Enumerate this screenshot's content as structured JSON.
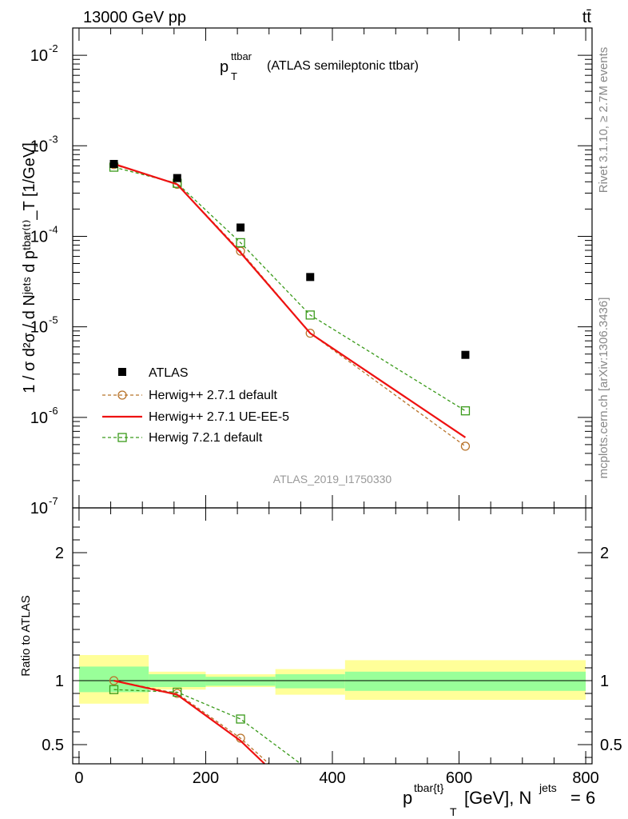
{
  "header": {
    "left": "13000 GeV pp",
    "right": "tt̄"
  },
  "side_labels": {
    "rivet": "Rivet 3.1.10, ≥ 2.7M events",
    "mcplots": "mcplots.cern.ch [arXiv:1306.3436]"
  },
  "plot_title": {
    "main": "p",
    "sup": "ttbar",
    "sub": "T",
    "rest": "(ATLAS semileptonic ttbar)"
  },
  "analysis_id": "ATLAS_2019_I1750330",
  "colors": {
    "atlas": "#000000",
    "herwig271_default": "#b8732a",
    "herwig271_ueee5": "#ee1111",
    "herwig721_default": "#3a9a1a",
    "band_inner": "#99ff99",
    "band_outer": "#ffff99"
  },
  "chart_data": [
    {
      "type": "scatter",
      "name": "main",
      "ylabel": "1 / σ d²σ / d Nʲᵉᵗˢ d pᵗᵇᵃʳ⁽ᵗ⁾_T [1/GeV]",
      "yscale": "log",
      "ylim": [
        1e-07,
        0.02
      ],
      "xlim": [
        -10,
        810
      ],
      "y_tick_labels": [
        "10",
        "10",
        "10",
        "10",
        "10",
        "10"
      ],
      "y_tick_exponents": [
        "-7",
        "-6",
        "-5",
        "-4",
        "-3",
        "-2"
      ],
      "x": [
        55,
        155,
        255,
        365,
        610
      ],
      "xerr_edges": [
        [
          0,
          110
        ],
        [
          110,
          200
        ],
        [
          200,
          310
        ],
        [
          310,
          420
        ],
        [
          420,
          800
        ]
      ],
      "series": [
        {
          "name": "ATLAS",
          "values": [
            0.00063,
            0.00044,
            0.000125,
            3.55e-05,
            4.9e-06
          ]
        },
        {
          "name": "Herwig++ 2.7.1 default",
          "values": [
            0.00062,
            0.000375,
            6.85e-05,
            8.5e-06,
            4.8e-07
          ]
        },
        {
          "name": "Herwig++ 2.7.1 UE-EE-5",
          "values": [
            0.00063,
            0.000375,
            6.6e-05,
            8.5e-06,
            6e-07
          ]
        },
        {
          "name": "Herwig 7.2.1 default",
          "values": [
            0.00058,
            0.000385,
            8.5e-05,
            1.35e-05,
            1.18e-06
          ]
        }
      ],
      "legend_placement": "bottom-left"
    },
    {
      "type": "line",
      "name": "ratio",
      "ylabel": "Ratio to ATLAS",
      "ylim": [
        0.35,
        2.35
      ],
      "xlim": [
        -10,
        810
      ],
      "xlabel_main": "p",
      "xlabel_sup": "tbar{t}",
      "xlabel_sub": "T",
      "xlabel_unit": "[GeV], N",
      "xlabel_sup2": "jets",
      "xlabel_tail": "= 6",
      "x_ticks": [
        0,
        200,
        400,
        600,
        800
      ],
      "x_tick_labels": [
        "0",
        "200",
        "400",
        "600",
        "800"
      ],
      "y_ticks": [
        0.5,
        1,
        2
      ],
      "y_tick_labels": [
        "0.5",
        "1",
        "2"
      ],
      "bands": [
        {
          "x0": 0,
          "x1": 110,
          "inner": [
            0.91,
            1.11
          ],
          "outer": [
            0.82,
            1.2
          ]
        },
        {
          "x0": 110,
          "x1": 200,
          "inner": [
            0.95,
            1.05
          ],
          "outer": [
            0.93,
            1.07
          ]
        },
        {
          "x0": 200,
          "x1": 310,
          "inner": [
            0.96,
            1.03
          ],
          "outer": [
            0.95,
            1.05
          ]
        },
        {
          "x0": 310,
          "x1": 420,
          "inner": [
            0.94,
            1.05
          ],
          "outer": [
            0.89,
            1.09
          ]
        },
        {
          "x0": 420,
          "x1": 800,
          "inner": [
            0.92,
            1.07
          ],
          "outer": [
            0.85,
            1.16
          ]
        }
      ],
      "series": [
        {
          "name": "Herwig++ 2.7.1 default",
          "x": [
            55,
            155,
            255,
            300
          ],
          "values": [
            1.0,
            0.9,
            0.55,
            0.35
          ]
        },
        {
          "name": "Herwig++ 2.7.1 UE-EE-5",
          "x": [
            55,
            155,
            255,
            293
          ],
          "values": [
            1.0,
            0.89,
            0.53,
            0.35
          ]
        },
        {
          "name": "Herwig 7.2.1 default",
          "x": [
            55,
            155,
            255,
            350
          ],
          "values": [
            0.93,
            0.91,
            0.7,
            0.35
          ]
        }
      ]
    }
  ]
}
